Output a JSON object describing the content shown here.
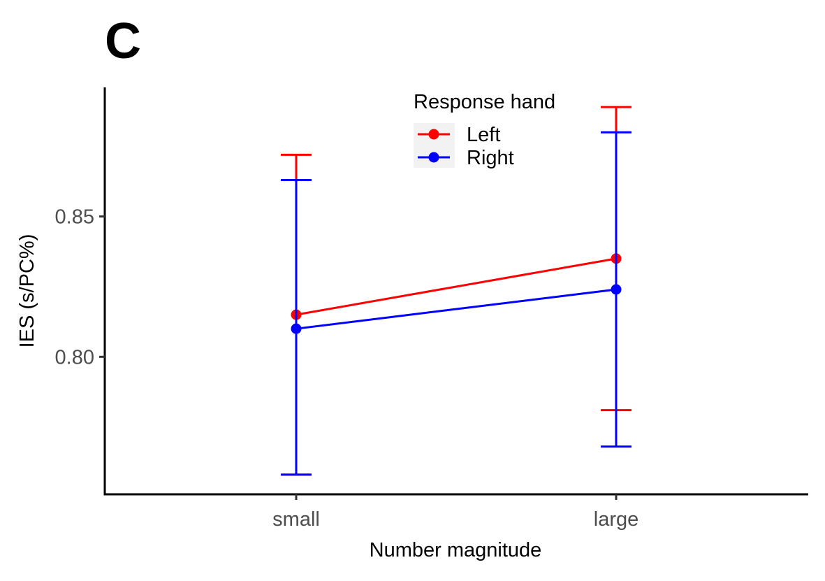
{
  "panel_label": "C",
  "chart_data": {
    "type": "line",
    "title": "",
    "xlabel": "Number magnitude",
    "ylabel": "IES (s/PC%)",
    "categories": [
      "small",
      "large"
    ],
    "ylim": [
      0.751,
      0.896
    ],
    "yticks": [
      0.8,
      0.85
    ],
    "ytick_labels": [
      "0.80",
      "0.85"
    ],
    "grid": false,
    "legend": {
      "title": "Response hand",
      "placement": "top-center"
    },
    "series": [
      {
        "name": "Left",
        "color": "#ff0000",
        "values": [
          0.815,
          0.835
        ],
        "error_low": [
          0.758,
          0.781
        ],
        "error_high": [
          0.872,
          0.889
        ]
      },
      {
        "name": "Right",
        "color": "#0000ff",
        "values": [
          0.81,
          0.824
        ],
        "error_low": [
          0.758,
          0.768
        ],
        "error_high": [
          0.863,
          0.88
        ]
      }
    ]
  }
}
